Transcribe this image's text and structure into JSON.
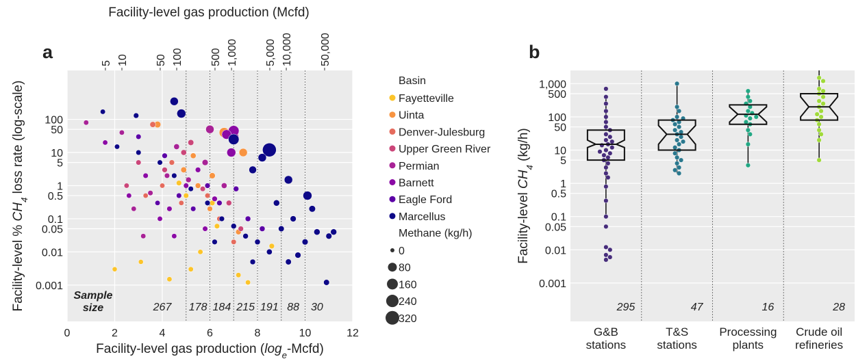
{
  "chart_data": [
    {
      "type": "scatter",
      "panel_label": "a",
      "xlabel": [
        "Facility-level gas production (",
        "log",
        "e",
        "-Mcfd)"
      ],
      "ylabel": [
        "Facility-level % ",
        "CH",
        "4",
        " loss rate (log-scale)"
      ],
      "x2label": "Facility-level gas production (Mcfd)",
      "xlim": [
        0,
        12
      ],
      "xticks": [
        0,
        2,
        4,
        6,
        8,
        10,
        12
      ],
      "ylim": [
        8e-05,
        3000
      ],
      "yscale": "log",
      "yticks": [
        0.001,
        0.01,
        0.05,
        0.1,
        0.5,
        1,
        5,
        10,
        50,
        100
      ],
      "x2lim": [
        1,
        162755
      ],
      "x2scale": "log",
      "x2ticks": [
        5,
        10,
        50,
        100,
        500,
        {
          "value": 1000,
          "label": "1,000"
        },
        {
          "value": 5000,
          "label": "5,000"
        },
        {
          "value": 10000,
          "label": "10,000"
        },
        {
          "value": 50000,
          "label": "50,000"
        }
      ],
      "grid": true,
      "group_edges": [
        5,
        6,
        7,
        8,
        9,
        10
      ],
      "sample_size_title": "Sample\nsize",
      "sample_sizes": [
        267,
        178,
        184,
        215,
        191,
        88,
        30
      ],
      "legend_title": "Basin",
      "size_legend": {
        "title": "Methane (kg/h)",
        "values": [
          0,
          80,
          160,
          240,
          320
        ]
      },
      "series": [
        {
          "name": "Fayetteville",
          "color": "#fcc42a",
          "x": [
            2.0,
            3.1,
            4.3,
            5.2,
            5.6,
            6.3,
            7.2,
            7.6,
            8.6,
            5.0,
            4.7,
            6.1
          ],
          "y": [
            0.003,
            0.005,
            0.0015,
            0.003,
            0.01,
            0.06,
            0.002,
            0.0012,
            0.015,
            0.5,
            1.2,
            0.3
          ],
          "sizes": [
            2,
            2,
            3,
            3,
            3,
            4,
            3,
            3,
            5,
            4,
            5,
            5
          ]
        },
        {
          "name": "Uinta",
          "color": "#f89441",
          "x": [
            4.9,
            5.3,
            6.1,
            6.6,
            7.4,
            6.0,
            5.5,
            7.2,
            3.8
          ],
          "y": [
            3,
            8,
            2,
            40,
            10,
            0.2,
            1,
            0.04,
            70
          ],
          "sizes": [
            10,
            8,
            12,
            120,
            60,
            5,
            6,
            6,
            20
          ]
        },
        {
          "name": "Denver-Julesburg",
          "color": "#e56b5d",
          "x": [
            3.3,
            4.0,
            4.8,
            5.3,
            5.9,
            6.4,
            4.4,
            3.6,
            7.0
          ],
          "y": [
            0.5,
            1,
            0.3,
            0.2,
            0.5,
            0.1,
            5,
            70,
            0.02
          ],
          "sizes": [
            3,
            3,
            3,
            3,
            4,
            4,
            5,
            10,
            4
          ]
        },
        {
          "name": "Upper Green River",
          "color": "#cb4679",
          "x": [
            2.5,
            3.0,
            4.1,
            4.9,
            5.7,
            6.8,
            7.3,
            5.2
          ],
          "y": [
            1,
            5,
            3,
            10,
            0.8,
            0.3,
            0.05,
            20
          ],
          "sizes": [
            3,
            4,
            5,
            8,
            4,
            6,
            5,
            10
          ]
        },
        {
          "name": "Permian",
          "color": "#a82296",
          "x": [
            0.8,
            2.3,
            2.8,
            3.5,
            4.2,
            4.6,
            5.1,
            5.8,
            6.6,
            3.2,
            6.0,
            7.0
          ],
          "y": [
            80,
            40,
            0.2,
            0.6,
            2,
            15,
            1.5,
            5,
            1,
            0.03,
            50,
            30
          ],
          "sizes": [
            3,
            3,
            3,
            4,
            4,
            8,
            6,
            12,
            8,
            3,
            60,
            120
          ]
        },
        {
          "name": "Barnett",
          "color": "#8b0aa5",
          "x": [
            1.6,
            2.6,
            3.3,
            3.9,
            4.5,
            5.0,
            5.5,
            6.2,
            6.9,
            7.0,
            6.7,
            4.3,
            5.8
          ],
          "y": [
            20,
            0.5,
            2,
            0.1,
            0.03,
            1,
            3,
            0.4,
            10,
            45,
            35,
            0.2,
            0.05
          ],
          "sizes": [
            3,
            3,
            4,
            3,
            3,
            4,
            5,
            5,
            80,
            150,
            100,
            4,
            4
          ]
        },
        {
          "name": "Eagle Ford",
          "color": "#5c01a6",
          "x": [
            3.0,
            4.1,
            4.7,
            5.3,
            5.9,
            6.4,
            7.1,
            7.6,
            8.2,
            3.8
          ],
          "y": [
            30,
            8,
            0.5,
            0.2,
            1,
            0.3,
            0.8,
            0.1,
            0.05,
            0.3
          ],
          "sizes": [
            4,
            5,
            4,
            4,
            5,
            5,
            6,
            6,
            7,
            3
          ]
        },
        {
          "name": "Marcellus",
          "color": "#0d0887",
          "x": [
            1.5,
            2.9,
            4.5,
            4.8,
            2.1,
            3.0,
            3.9,
            4.5,
            5.2,
            5.9,
            6.5,
            7.0,
            7.5,
            8.0,
            8.5,
            9.0,
            9.5,
            10.0,
            10.5,
            11.0,
            11.2,
            10.9,
            9.3,
            8.5,
            10.1,
            9.3,
            8.2,
            7.0,
            7.8,
            6.2,
            7.8,
            8.8,
            10.3,
            9.7
          ],
          "y": [
            170,
            130,
            350,
            150,
            15,
            10,
            5,
            2,
            0.8,
            0.3,
            0.1,
            0.06,
            0.03,
            0.02,
            0.01,
            0.05,
            0.1,
            0.02,
            0.04,
            0.03,
            0.04,
            0.0012,
            0.005,
            12,
            0.5,
            1.5,
            7,
            25,
            3,
            0.02,
            0.005,
            0.3,
            0.2,
            0.008
          ],
          "sizes": [
            3,
            5,
            60,
            80,
            3,
            4,
            4,
            4,
            4,
            5,
            5,
            6,
            6,
            7,
            8,
            10,
            12,
            12,
            15,
            12,
            14,
            10,
            10,
            320,
            80,
            60,
            60,
            150,
            40,
            5,
            6,
            15,
            20,
            12
          ]
        }
      ]
    },
    {
      "type": "box",
      "panel_label": "b",
      "ylabel": [
        "Facility-level ",
        "CH",
        "4",
        " (kg/h)"
      ],
      "categories": [
        "G&B\nstations",
        "T&S\nstations",
        "Processing\nplants",
        "Crude oil\nrefineries"
      ],
      "colors": [
        "#472d7b",
        "#2a788e",
        "#22a884",
        "#a0da39"
      ],
      "counts": [
        295,
        47,
        16,
        28
      ],
      "ylim": [
        7e-05,
        2500
      ],
      "yscale": "log",
      "yticks": [
        0.001,
        0.01,
        0.05,
        0.1,
        0.5,
        1,
        5,
        10,
        50,
        100,
        500,
        {
          "value": 1000,
          "label": "1,000"
        }
      ],
      "grid": true,
      "points": [
        [
          0.005,
          0.006,
          0.007,
          0.01,
          0.012,
          0.05,
          0.1,
          0.3,
          0.8,
          1.5,
          2,
          3,
          4,
          5,
          6,
          7,
          8,
          9,
          10,
          12,
          14,
          15,
          18,
          20,
          25,
          30,
          40,
          50,
          70,
          100,
          150,
          250,
          400,
          700
        ],
        [
          2,
          2.5,
          3,
          4,
          5,
          6,
          8,
          10,
          12,
          15,
          18,
          20,
          25,
          30,
          35,
          40,
          50,
          60,
          70,
          80,
          90,
          100,
          150,
          200,
          1000
        ],
        [
          3.5,
          15,
          30,
          40,
          60,
          70,
          90,
          100,
          110,
          130,
          150,
          200,
          250,
          300,
          400,
          600
        ],
        [
          5,
          20,
          30,
          40,
          60,
          80,
          100,
          120,
          150,
          200,
          250,
          300,
          400,
          500,
          600,
          700,
          1200,
          1500
        ]
      ],
      "boxes": {
        "q1": [
          5,
          10,
          60,
          80
        ],
        "median": [
          15,
          30,
          120,
          200
        ],
        "q3": [
          40,
          80,
          230,
          500
        ],
        "notch_low": [
          12,
          15,
          70,
          100
        ],
        "notch_high": [
          20,
          55,
          200,
          400
        ],
        "whisker_low": [
          0.1,
          2,
          3.5,
          5
        ],
        "whisker_high": [
          400,
          1000,
          600,
          2500
        ]
      }
    }
  ]
}
